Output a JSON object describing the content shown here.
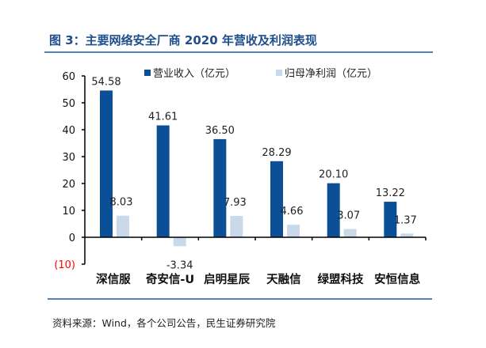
{
  "title": "图 3：主要网络安全厂商 2020 年营收及利润表现",
  "source": "资料来源：Wind，各个公司公告，民生证券研究院",
  "colors": {
    "title": "#1f4e8c",
    "rule": "#4f81bd",
    "revenue": "#0b4f96",
    "profit": "#c9d9ea",
    "negative_tick": "#ff0000"
  },
  "chart_data": {
    "type": "bar",
    "categories": [
      "深信服",
      "奇安信-U",
      "启明星辰",
      "天融信",
      "绿盟科技",
      "安恒信息"
    ],
    "series": [
      {
        "name": "营业收入（亿元）",
        "values": [
          54.58,
          41.61,
          36.5,
          28.29,
          20.1,
          13.22
        ],
        "labels": [
          "54.58",
          "41.61",
          "36.50",
          "28.29",
          "20.10",
          "13.22"
        ]
      },
      {
        "name": "归母净利润（亿元）",
        "values": [
          8.03,
          -3.34,
          7.93,
          4.66,
          3.07,
          1.37
        ],
        "labels": [
          "8.03",
          "-3.34",
          "7.93",
          "4.66",
          "3.07",
          "1.37"
        ]
      }
    ],
    "yticks": [
      "(10)",
      "0",
      "10",
      "20",
      "30",
      "40",
      "50",
      "60"
    ],
    "ytick_values": [
      -10,
      0,
      10,
      20,
      30,
      40,
      50,
      60
    ],
    "ylim": [
      -10,
      60
    ],
    "grid": false,
    "legend": "top"
  }
}
